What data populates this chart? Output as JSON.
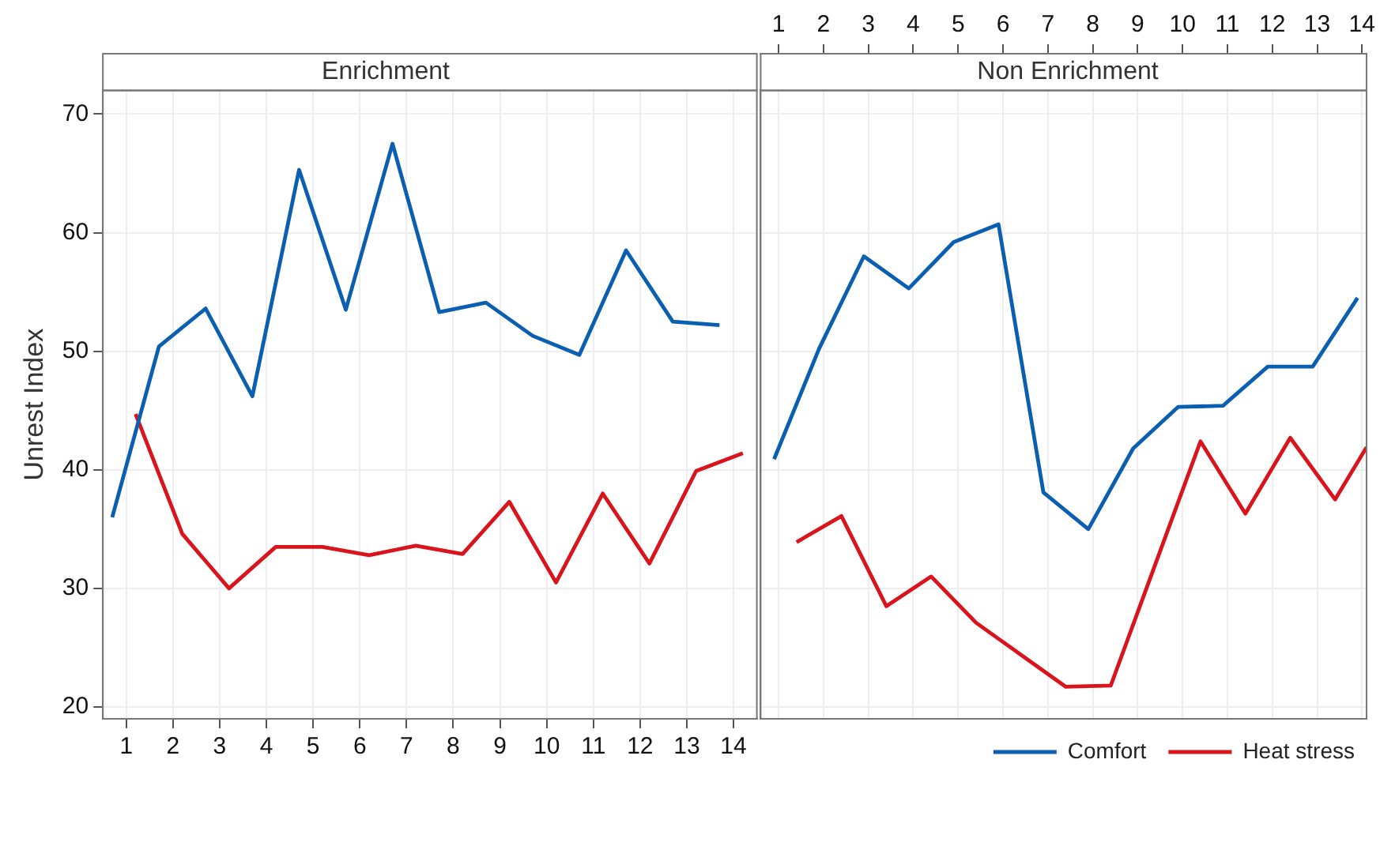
{
  "chart_data": [
    {
      "type": "line",
      "title": "Enrichment",
      "ylabel": "Unrest Index",
      "xlim": [
        0.5,
        14.5
      ],
      "xticks": [
        1,
        2,
        3,
        4,
        5,
        6,
        7,
        8,
        9,
        10,
        11,
        12,
        13,
        14
      ],
      "ylim": [
        19,
        72
      ],
      "yticks": [
        20,
        30,
        40,
        50,
        60,
        70
      ],
      "grid": true,
      "legend": false,
      "series": [
        {
          "color": "#0b5fb0",
          "x": [
            0.7,
            1.7,
            2.7,
            3.7,
            4.7,
            5.7,
            6.7,
            7.7,
            8.7,
            9.7,
            10.7,
            11.7,
            12.7,
            13.7
          ],
          "values": [
            36.0,
            50.4,
            53.6,
            46.2,
            65.3,
            53.5,
            67.5,
            53.3,
            54.1,
            51.3,
            49.7,
            58.5,
            52.5,
            52.2
          ]
        },
        {
          "color": "#d9141c",
          "x": [
            1.2,
            2.2,
            3.2,
            4.2,
            5.2,
            6.2,
            7.2,
            8.2,
            9.2,
            10.2,
            11.2,
            12.2,
            13.2,
            14.2
          ],
          "values": [
            44.7,
            34.6,
            30.0,
            33.5,
            33.5,
            32.8,
            33.6,
            32.9,
            37.3,
            30.5,
            38.0,
            32.1,
            39.9,
            41.4
          ]
        }
      ]
    },
    {
      "type": "line",
      "title": "Non Enrichment",
      "xlim": [
        0.6,
        14.1
      ],
      "xticks": [
        1,
        2,
        3,
        4,
        5,
        6,
        7,
        8,
        9,
        10,
        11,
        12,
        13,
        14
      ],
      "ylim": [
        19,
        72
      ],
      "yticks": [
        20,
        30,
        40,
        50,
        60,
        70
      ],
      "grid": true,
      "tick_labels": "x",
      "legend": "bottom right",
      "series": [
        {
          "name": "Comfort",
          "color": "#0b5fb0",
          "x": [
            0.9,
            1.9,
            2.9,
            3.9,
            4.9,
            5.9,
            6.9,
            7.9,
            8.9,
            9.9,
            10.9,
            11.9,
            12.9,
            13.9
          ],
          "values": [
            40.9,
            50.2,
            58.0,
            55.3,
            59.2,
            60.7,
            38.1,
            35.0,
            41.8,
            45.3,
            45.4,
            48.7,
            48.7,
            54.5
          ]
        },
        {
          "name": "Heat stress",
          "color": "#d9141c",
          "x": [
            1.4,
            2.4,
            3.4,
            4.4,
            5.4,
            6.4,
            7.4,
            8.4,
            9.4,
            10.4,
            11.4,
            12.4,
            13.4,
            14.1
          ],
          "values": [
            33.9,
            36.1,
            28.5,
            31.0,
            27.1,
            24.4,
            21.7,
            21.8,
            32.1,
            42.4,
            36.3,
            42.7,
            37.5,
            41.9
          ]
        }
      ]
    }
  ]
}
